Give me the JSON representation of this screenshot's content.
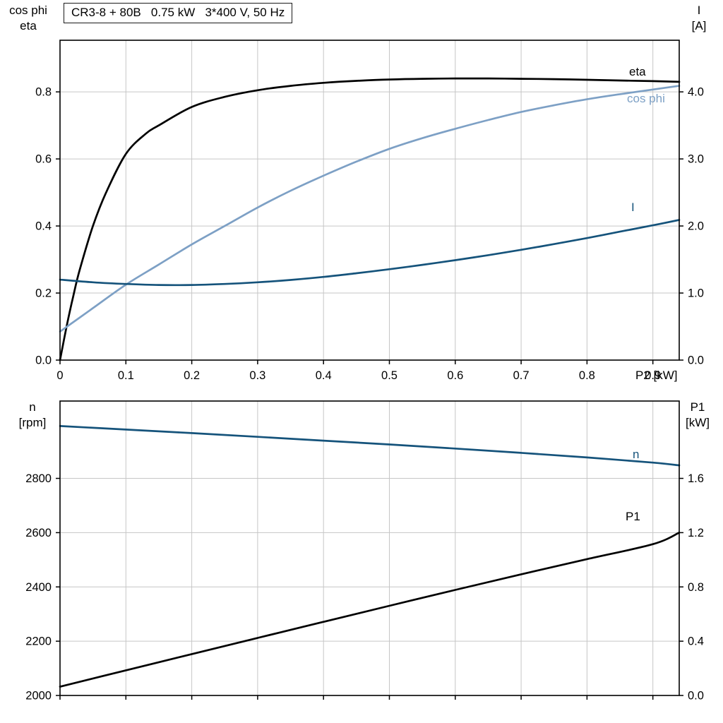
{
  "title_box": "CR3-8 + 80B   0.75 kW   3*400 V, 50 Hz",
  "colors": {
    "black": "#000000",
    "light_blue": "#7da0c5",
    "dark_blue": "#15537b",
    "grid": "#c6c6c6",
    "frame": "#000000"
  },
  "top_chart": {
    "left_axis_title": [
      "cos phi",
      "eta"
    ],
    "right_axis_title": [
      "I",
      "[A]"
    ],
    "curve_labels": {
      "eta": "eta",
      "cos_phi": "cos phi",
      "current": "I"
    }
  },
  "bottom_chart": {
    "left_axis_title": [
      "n",
      "[rpm]"
    ],
    "right_axis_title": [
      "P1",
      "[kW]"
    ],
    "curve_labels": {
      "n": "n",
      "p1": "P1"
    }
  },
  "chart_data": [
    {
      "type": "line",
      "title": "CR3-8 + 80B 0.75 kW 3*400 V, 50 Hz",
      "grid": true,
      "legend_position": "curve-end-labels",
      "x_axis": {
        "label": "P2 [kW]",
        "range": [
          0,
          0.94
        ],
        "tick_values": [
          0,
          0.1,
          0.2,
          0.3,
          0.4,
          0.5,
          0.6,
          0.7,
          0.8,
          0.9
        ],
        "tick_labels": [
          "0",
          "0.1",
          "0.2",
          "0.3",
          "0.4",
          "0.5",
          "0.6",
          "0.7",
          "0.8",
          "0.9"
        ]
      },
      "y_left": {
        "label": "cos phi / eta",
        "range": [
          0,
          0.954
        ],
        "tick_values": [
          0,
          0.2,
          0.4,
          0.6,
          0.8
        ],
        "tick_labels": [
          "0.0",
          "0.2",
          "0.4",
          "0.6",
          "0.8"
        ]
      },
      "y_right": {
        "label": "I [A]",
        "range": [
          0,
          4.77
        ],
        "tick_values": [
          0,
          1,
          2,
          3,
          4
        ],
        "tick_labels": [
          "0.0",
          "1.0",
          "2.0",
          "3.0",
          "4.0"
        ]
      },
      "series": [
        {
          "name": "eta",
          "axis": "left",
          "color": "black",
          "x": [
            0,
            0.01,
            0.02,
            0.03,
            0.05,
            0.07,
            0.1,
            0.13,
            0.15,
            0.2,
            0.25,
            0.3,
            0.35,
            0.4,
            0.45,
            0.5,
            0.55,
            0.6,
            0.65,
            0.7,
            0.75,
            0.8,
            0.85,
            0.9,
            0.94
          ],
          "y": [
            0,
            0.1,
            0.19,
            0.27,
            0.4,
            0.5,
            0.615,
            0.675,
            0.7,
            0.755,
            0.785,
            0.805,
            0.818,
            0.827,
            0.833,
            0.837,
            0.839,
            0.84,
            0.84,
            0.839,
            0.838,
            0.836,
            0.834,
            0.832,
            0.83
          ]
        },
        {
          "name": "cos phi",
          "axis": "left",
          "color": "light_blue",
          "x": [
            0,
            0.05,
            0.1,
            0.15,
            0.2,
            0.25,
            0.3,
            0.35,
            0.4,
            0.45,
            0.5,
            0.55,
            0.6,
            0.65,
            0.7,
            0.75,
            0.8,
            0.85,
            0.9,
            0.94
          ],
          "y": [
            0.085,
            0.155,
            0.225,
            0.285,
            0.345,
            0.4,
            0.455,
            0.505,
            0.55,
            0.592,
            0.63,
            0.662,
            0.69,
            0.716,
            0.74,
            0.76,
            0.778,
            0.793,
            0.807,
            0.818
          ]
        },
        {
          "name": "I",
          "axis": "right",
          "color": "dark_blue",
          "x": [
            0,
            0.05,
            0.1,
            0.15,
            0.2,
            0.25,
            0.3,
            0.35,
            0.4,
            0.45,
            0.5,
            0.55,
            0.6,
            0.65,
            0.7,
            0.75,
            0.8,
            0.85,
            0.9,
            0.94
          ],
          "y": [
            1.2,
            1.16,
            1.135,
            1.12,
            1.12,
            1.135,
            1.16,
            1.195,
            1.24,
            1.295,
            1.355,
            1.42,
            1.49,
            1.565,
            1.645,
            1.73,
            1.82,
            1.915,
            2.01,
            2.09
          ]
        }
      ]
    },
    {
      "type": "line",
      "title": "",
      "grid": true,
      "legend_position": "curve-end-labels",
      "x_axis": {
        "label": "",
        "range": [
          0,
          0.94
        ],
        "tick_values": [
          0,
          0.1,
          0.2,
          0.3,
          0.4,
          0.5,
          0.6,
          0.7,
          0.8,
          0.9
        ],
        "tick_labels": []
      },
      "y_left": {
        "label": "n [rpm]",
        "range": [
          2000,
          3085
        ],
        "tick_values": [
          2000,
          2200,
          2400,
          2600,
          2800
        ],
        "tick_labels": [
          "2000",
          "2200",
          "2400",
          "2600",
          "2800"
        ]
      },
      "y_right": {
        "label": "P1 [kW]",
        "range": [
          0,
          2.17
        ],
        "tick_values": [
          0,
          0.4,
          0.8,
          1.2,
          1.6
        ],
        "tick_labels": [
          "0.0",
          "0.4",
          "0.8",
          "1.2",
          "1.6"
        ]
      },
      "series": [
        {
          "name": "n",
          "axis": "left",
          "color": "dark_blue",
          "x": [
            0,
            0.1,
            0.2,
            0.3,
            0.4,
            0.5,
            0.6,
            0.7,
            0.8,
            0.9,
            0.94
          ],
          "y": [
            2993,
            2980,
            2967,
            2953,
            2939,
            2925,
            2910,
            2894,
            2877,
            2858,
            2848
          ]
        },
        {
          "name": "P1",
          "axis": "right",
          "color": "black",
          "x": [
            0,
            0.1,
            0.2,
            0.3,
            0.4,
            0.5,
            0.6,
            0.7,
            0.8,
            0.9,
            0.94
          ],
          "y": [
            0.065,
            0.185,
            0.305,
            0.424,
            0.543,
            0.661,
            0.778,
            0.893,
            1.005,
            1.115,
            1.2
          ]
        }
      ]
    }
  ]
}
